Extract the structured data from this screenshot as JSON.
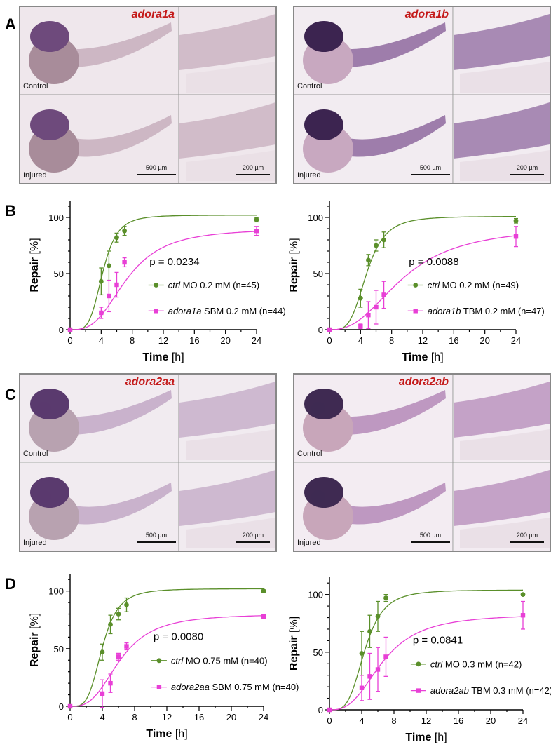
{
  "panels": {
    "A": {
      "letter": "A",
      "left": {
        "gene": "adora1a",
        "rows": [
          "Control",
          "Injured"
        ],
        "scale_big": "500 µm",
        "scale_small": "200 µm",
        "stain": {
          "head": "#6e4a7c",
          "body": "#c7aebd",
          "yolk": "#a88c9a",
          "bg": "#efe7ec"
        }
      },
      "right": {
        "gene": "adora1b",
        "rows": [
          "Control",
          "Injured"
        ],
        "scale_big": "500 µm",
        "scale_small": "200 µm",
        "stain": {
          "head": "#3c2450",
          "body": "#8f6a9f",
          "yolk": "#c8a8c0",
          "bg": "#f2ecf1"
        }
      }
    },
    "B": {
      "letter": "B"
    },
    "C": {
      "letter": "C",
      "left": {
        "gene": "adora2aa",
        "rows": [
          "Control",
          "Injured"
        ],
        "scale_big": "500 µm",
        "scale_small": "200 µm",
        "stain": {
          "head": "#5a3a6e",
          "body": "#c2a8c6",
          "yolk": "#b8a2b0",
          "bg": "#f1ebf0"
        }
      },
      "right": {
        "gene": "adora2ab",
        "rows": [
          "Control",
          "Injured"
        ],
        "scale_big": "500 µm",
        "scale_small": "200 µm",
        "stain": {
          "head": "#3f2a52",
          "body": "#b48ab8",
          "yolk": "#c8a6ba",
          "bg": "#f3ecf2"
        }
      }
    },
    "D": {
      "letter": "D"
    }
  },
  "chart_data": [
    {
      "id": "B-left",
      "type": "scatter",
      "xlabel": "Time",
      "xunit": "[h]",
      "ylabel": "Repair",
      "yunit": "[%]",
      "xlim": [
        0,
        24
      ],
      "ylim": [
        0,
        115
      ],
      "xticks": [
        0,
        4,
        8,
        12,
        16,
        20,
        24
      ],
      "yticks": [
        0,
        50,
        100
      ],
      "annotation": "p = 0.0234",
      "series": [
        {
          "name_italic": "ctrl",
          "name_rest": "MO 0.2 mM (n=45)",
          "color": "#5a8f2a",
          "marker": "circle",
          "x": [
            0,
            4,
            5,
            6,
            7,
            24
          ],
          "y": [
            0,
            43,
            57,
            82,
            88,
            98
          ],
          "err": [
            0,
            12,
            13,
            4,
            4,
            2
          ],
          "fit": {
            "top": 102,
            "x50": 4.2,
            "h": 4.5
          }
        },
        {
          "name_italic": "adora1a",
          "name_rest": "SBM 0.2 mM (n=44)",
          "color": "#e83fd6",
          "marker": "square",
          "x": [
            0,
            4,
            5,
            6,
            7,
            24
          ],
          "y": [
            0,
            15,
            30,
            40,
            60,
            88
          ],
          "err": [
            0,
            5,
            14,
            11,
            4,
            4
          ],
          "fit": {
            "top": 90,
            "x50": 7.3,
            "h": 3.0
          }
        }
      ]
    },
    {
      "id": "B-right",
      "type": "scatter",
      "xlabel": "Time",
      "xunit": "[h]",
      "ylabel": "Repair",
      "yunit": "[%]",
      "xlim": [
        0,
        24
      ],
      "ylim": [
        0,
        115
      ],
      "xticks": [
        0,
        4,
        8,
        12,
        16,
        20,
        24
      ],
      "yticks": [
        0,
        50,
        100
      ],
      "annotation": "p = 0.0088",
      "series": [
        {
          "name_italic": "ctrl",
          "name_rest": "MO 0.2 mM (n=49)",
          "color": "#5a8f2a",
          "marker": "circle",
          "x": [
            0,
            4,
            5,
            6,
            7,
            24
          ],
          "y": [
            0,
            28,
            62,
            75,
            80,
            97
          ],
          "err": [
            0,
            8,
            5,
            5,
            7,
            2
          ],
          "fit": {
            "top": 101,
            "x50": 4.8,
            "h": 4.0
          }
        },
        {
          "name_italic": "adora1b",
          "name_rest": "TBM 0.2 mM (n=47)",
          "color": "#e83fd6",
          "marker": "square",
          "x": [
            0,
            4,
            5,
            6,
            7,
            24
          ],
          "y": [
            0,
            3,
            13,
            20,
            31,
            83
          ],
          "err": [
            0,
            2,
            12,
            15,
            12,
            9
          ],
          "fit": {
            "top": 92,
            "x50": 9.5,
            "h": 2.5
          }
        }
      ]
    },
    {
      "id": "D-left",
      "type": "scatter",
      "xlabel": "Time",
      "xunit": "[h]",
      "ylabel": "Repair",
      "yunit": "[%]",
      "xlim": [
        0,
        24
      ],
      "ylim": [
        0,
        115
      ],
      "xticks": [
        0,
        4,
        8,
        12,
        16,
        20,
        24
      ],
      "yticks": [
        0,
        50,
        100
      ],
      "annotation": "p = 0.0080",
      "series": [
        {
          "name_italic": "ctrl",
          "name_rest": "MO 0.75 mM (n=40)",
          "color": "#5a8f2a",
          "marker": "circle",
          "x": [
            0,
            4,
            5,
            6,
            7,
            24
          ],
          "y": [
            0,
            47,
            71,
            80,
            88,
            100
          ],
          "err": [
            0,
            7,
            8,
            5,
            6,
            1
          ],
          "fit": {
            "top": 102,
            "x50": 4.0,
            "h": 4.0
          }
        },
        {
          "name_italic": "adora2aa",
          "name_rest": "SBM 0.75 mM (n=40)",
          "color": "#e83fd6",
          "marker": "square",
          "x": [
            0,
            4,
            5,
            6,
            7,
            24
          ],
          "y": [
            0,
            11,
            20,
            43,
            52,
            78
          ],
          "err": [
            0,
            12,
            8,
            3,
            3,
            1
          ],
          "fit": {
            "top": 80,
            "x50": 6.2,
            "h": 3.0
          }
        }
      ]
    },
    {
      "id": "D-right",
      "type": "scatter",
      "xlabel": "Time",
      "xunit": "[h]",
      "ylabel": "Repair",
      "yunit": "[%]",
      "xlim": [
        0,
        24
      ],
      "ylim": [
        0,
        115
      ],
      "xticks": [
        0,
        4,
        8,
        12,
        16,
        20,
        24
      ],
      "yticks": [
        0,
        50,
        100
      ],
      "annotation": "p = 0.0841",
      "series": [
        {
          "name_italic": "ctrl",
          "name_rest": "MO 0.3 mM (n=42)",
          "color": "#5a8f2a",
          "marker": "circle",
          "x": [
            0,
            4,
            5,
            6,
            7,
            24
          ],
          "y": [
            0,
            49,
            68,
            81,
            97,
            100
          ],
          "err": [
            0,
            19,
            14,
            13,
            3,
            1
          ],
          "fit": {
            "top": 104,
            "x50": 4.4,
            "h": 3.8
          }
        },
        {
          "name_italic": "adora2ab",
          "name_rest": "TBM 0.3 mM (n=42)",
          "color": "#e83fd6",
          "marker": "square",
          "x": [
            0,
            4,
            5,
            6,
            7,
            24
          ],
          "y": [
            0,
            19,
            29,
            35,
            46,
            82
          ],
          "err": [
            0,
            11,
            20,
            19,
            17,
            12
          ],
          "fit": {
            "top": 83,
            "x50": 6.6,
            "h": 2.8
          }
        }
      ]
    }
  ]
}
